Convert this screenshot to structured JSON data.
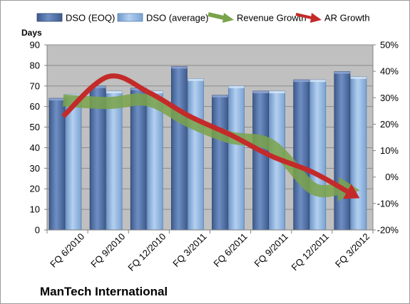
{
  "chart_data": {
    "type": "bar",
    "title": "ManTech International",
    "ylabel": "Days",
    "categories": [
      "FQ 6/2010",
      "FQ 9/2010",
      "FQ 12/2010",
      "FQ 3/2011",
      "FQ 6/2011",
      "FQ 9/2011",
      "FQ 12/2011",
      "FQ 3/2012"
    ],
    "series": [
      {
        "name": "DSO (EOQ)",
        "axis": "left",
        "kind": "bar",
        "color": "#4f6fa6",
        "values": [
          64,
          70,
          69,
          79.5,
          65.5,
          67.5,
          73,
          77
        ]
      },
      {
        "name": "DSO (average)",
        "axis": "left",
        "kind": "bar",
        "color": "#8fb3df",
        "values": [
          66,
          67.5,
          67.5,
          73.5,
          70,
          67.5,
          73,
          74.5
        ]
      },
      {
        "name": "Revenue Growth",
        "axis": "right",
        "kind": "trend-arrow",
        "color": "#7aa34a",
        "values": [
          0.29,
          0.28,
          0.29,
          0.21,
          0.15,
          0.12,
          -0.04,
          -0.05
        ]
      },
      {
        "name": "AR Growth",
        "axis": "right",
        "kind": "trend-arrow",
        "color": "#c42a2a",
        "values": [
          0.23,
          0.38,
          0.32,
          0.23,
          0.16,
          0.08,
          0.02,
          -0.08
        ]
      }
    ],
    "y_left": {
      "min": 0,
      "max": 90,
      "step": 10
    },
    "y_right": {
      "min": -0.2,
      "max": 0.5,
      "step": 0.1,
      "format": "percent"
    },
    "grid": true,
    "plot_background": "#c0c0c0",
    "legend_position": "top"
  }
}
